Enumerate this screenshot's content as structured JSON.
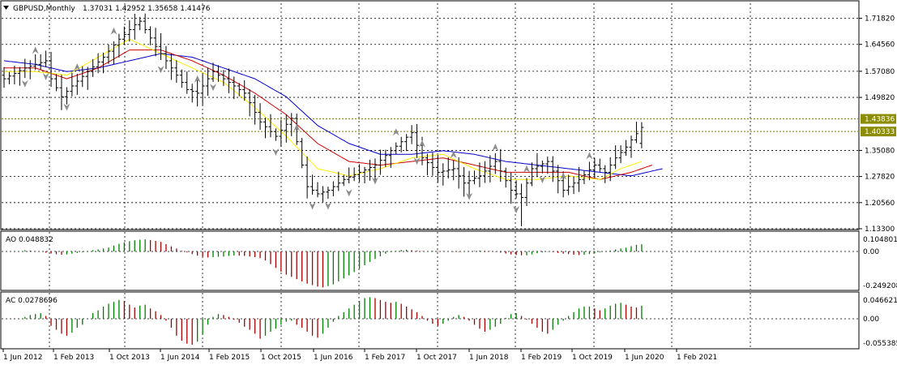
{
  "window": {
    "symbol_title": "GBPUSD,Monthly",
    "ohlc": "1.37031 1.42952 1.35658 1.41476",
    "dropdown_icon": "triangle-down-icon"
  },
  "colors": {
    "background": "#ffffff",
    "grid": "#000000",
    "bars": "#000000",
    "jaw": "#0000cc",
    "teeth": "#cc0000",
    "lips": "#ffee00",
    "osc_up": "#008000",
    "osc_down": "#aa0000",
    "price_tag_bg": "#8c8c00",
    "price_tag_text": "#ffffff",
    "fractal": "#8c8c8c",
    "level_line": "#7a7a00"
  },
  "sub_windows": {
    "ao": {
      "label": "AO 0.048832",
      "scale": [
        "0.104801",
        "0.00",
        "-0.249208"
      ]
    },
    "ac": {
      "label": "AC 0.0278696",
      "scale": [
        "0.0466218",
        "0.00",
        "-0.055385"
      ]
    }
  },
  "price_tags": {
    "upper": "1.43836",
    "lower": "1.40333"
  },
  "chart_data": {
    "type": "ohlc",
    "title": "GBPUSD,Monthly",
    "timeframe": "Monthly",
    "last_bar": {
      "open": 1.37031,
      "high": 1.42952,
      "low": 1.35658,
      "close": 1.41476
    },
    "ylim": [
      1.133,
      1.76
    ],
    "y_ticks": [
      "1.71820",
      "1.64560",
      "1.57080",
      "1.49820",
      "1.43836",
      "1.40333",
      "1.35080",
      "1.27820",
      "1.20560",
      "1.13300"
    ],
    "x_ticks": [
      "1 Jun 2012",
      "1 Feb 2013",
      "1 Oct 2013",
      "1 Jun 2014",
      "1 Feb 2015",
      "1 Oct 2015",
      "1 Jun 2016",
      "1 Feb 2017",
      "1 Oct 2017",
      "1 Jun 2018",
      "1 Feb 2019",
      "1 Oct 2019",
      "1 Jun 2020",
      "1 Feb 2021"
    ],
    "close_anchors": [
      [
        0,
        1.55
      ],
      [
        4,
        1.58
      ],
      [
        8,
        1.6
      ],
      [
        9,
        1.55
      ],
      [
        11,
        1.5
      ],
      [
        13,
        1.53
      ],
      [
        16,
        1.57
      ],
      [
        19,
        1.61
      ],
      [
        22,
        1.66
      ],
      [
        25,
        1.7
      ],
      [
        26,
        1.71
      ],
      [
        29,
        1.64
      ],
      [
        32,
        1.58
      ],
      [
        35,
        1.52
      ],
      [
        37,
        1.51
      ],
      [
        40,
        1.57
      ],
      [
        43,
        1.54
      ],
      [
        46,
        1.51
      ],
      [
        49,
        1.43
      ],
      [
        52,
        1.39
      ],
      [
        55,
        1.44
      ],
      [
        57,
        1.31
      ],
      [
        58,
        1.25
      ],
      [
        60,
        1.23
      ],
      [
        62,
        1.24
      ],
      [
        65,
        1.27
      ],
      [
        68,
        1.29
      ],
      [
        71,
        1.31
      ],
      [
        74,
        1.35
      ],
      [
        78,
        1.4
      ],
      [
        80,
        1.33
      ],
      [
        83,
        1.29
      ],
      [
        86,
        1.3
      ],
      [
        88,
        1.26
      ],
      [
        91,
        1.28
      ],
      [
        94,
        1.32
      ],
      [
        97,
        1.24
      ],
      [
        99,
        1.22
      ],
      [
        101,
        1.3
      ],
      [
        104,
        1.32
      ],
      [
        107,
        1.24
      ],
      [
        110,
        1.27
      ],
      [
        113,
        1.31
      ],
      [
        115,
        1.29
      ],
      [
        117,
        1.33
      ],
      [
        119,
        1.36
      ],
      [
        120,
        1.38
      ],
      [
        122,
        1.41476
      ]
    ],
    "alligator": {
      "jaw": [
        [
          0,
          1.6
        ],
        [
          6,
          1.59
        ],
        [
          12,
          1.57
        ],
        [
          18,
          1.58
        ],
        [
          24,
          1.6
        ],
        [
          30,
          1.62
        ],
        [
          36,
          1.61
        ],
        [
          42,
          1.58
        ],
        [
          48,
          1.55
        ],
        [
          54,
          1.5
        ],
        [
          60,
          1.42
        ],
        [
          66,
          1.37
        ],
        [
          72,
          1.34
        ],
        [
          78,
          1.34
        ],
        [
          84,
          1.35
        ],
        [
          90,
          1.34
        ],
        [
          96,
          1.32
        ],
        [
          102,
          1.31
        ],
        [
          108,
          1.3
        ],
        [
          114,
          1.29
        ],
        [
          120,
          1.28
        ],
        [
          126,
          1.3
        ]
      ],
      "teeth": [
        [
          0,
          1.58
        ],
        [
          6,
          1.58
        ],
        [
          12,
          1.55
        ],
        [
          18,
          1.58
        ],
        [
          24,
          1.63
        ],
        [
          30,
          1.63
        ],
        [
          36,
          1.6
        ],
        [
          42,
          1.56
        ],
        [
          48,
          1.51
        ],
        [
          54,
          1.45
        ],
        [
          60,
          1.37
        ],
        [
          66,
          1.32
        ],
        [
          72,
          1.31
        ],
        [
          78,
          1.32
        ],
        [
          84,
          1.33
        ],
        [
          90,
          1.31
        ],
        [
          96,
          1.29
        ],
        [
          102,
          1.29
        ],
        [
          108,
          1.29
        ],
        [
          114,
          1.27
        ],
        [
          120,
          1.29
        ],
        [
          124,
          1.31
        ]
      ],
      "lips": [
        [
          0,
          1.57
        ],
        [
          6,
          1.57
        ],
        [
          12,
          1.56
        ],
        [
          18,
          1.61
        ],
        [
          24,
          1.66
        ],
        [
          30,
          1.62
        ],
        [
          36,
          1.58
        ],
        [
          42,
          1.54
        ],
        [
          48,
          1.47
        ],
        [
          54,
          1.39
        ],
        [
          60,
          1.3
        ],
        [
          66,
          1.28
        ],
        [
          72,
          1.3
        ],
        [
          78,
          1.33
        ],
        [
          84,
          1.34
        ],
        [
          90,
          1.3
        ],
        [
          96,
          1.27
        ],
        [
          102,
          1.27
        ],
        [
          108,
          1.28
        ],
        [
          114,
          1.27
        ],
        [
          118,
          1.3
        ],
        [
          122,
          1.32
        ]
      ]
    },
    "ao_values": [
      0.008,
      0.006,
      0.003,
      0.0,
      -0.008,
      -0.014,
      -0.019,
      -0.022,
      -0.02,
      -0.015,
      -0.01,
      -0.005,
      0.003,
      0.008,
      0.014,
      0.02,
      0.026,
      0.04,
      0.052,
      0.062,
      0.07,
      0.076,
      0.08,
      0.082,
      0.078,
      0.072,
      0.065,
      0.05,
      0.035,
      0.02,
      0.004,
      -0.006,
      -0.018,
      -0.028,
      -0.036,
      -0.04,
      -0.038,
      -0.036,
      -0.034,
      -0.03,
      -0.027,
      -0.028,
      -0.03,
      -0.034,
      -0.038,
      -0.045,
      -0.06,
      -0.085,
      -0.11,
      -0.135,
      -0.155,
      -0.17,
      -0.185,
      -0.2,
      -0.215,
      -0.225,
      -0.235,
      -0.24,
      -0.232,
      -0.22,
      -0.2,
      -0.18,
      -0.16,
      -0.138,
      -0.115,
      -0.092,
      -0.07,
      -0.05,
      -0.032,
      -0.015,
      -0.004,
      0.004,
      0.01,
      0.012,
      0.008,
      0.004,
      0.002,
      0.003,
      0.004,
      0.003,
      0.002,
      0.0,
      -0.002,
      -0.003,
      -0.002,
      0.001,
      0.004,
      0.006,
      0.004,
      0.002,
      -0.002,
      -0.008,
      -0.014,
      -0.02,
      -0.024,
      -0.026,
      -0.026,
      -0.02,
      -0.012,
      -0.006,
      -0.002,
      -0.004,
      -0.01,
      -0.015,
      -0.018,
      -0.022,
      -0.024,
      -0.022,
      -0.018,
      -0.012,
      -0.006,
      0.0,
      0.006,
      0.014,
      0.02,
      0.026,
      0.036,
      0.045,
      0.048832
    ],
    "ac_values": [
      0.004,
      0.008,
      0.01,
      0.012,
      0.006,
      -0.014,
      -0.022,
      -0.03,
      -0.034,
      -0.028,
      -0.018,
      -0.012,
      0.0,
      0.012,
      0.018,
      0.026,
      0.032,
      0.036,
      0.04,
      0.038,
      0.03,
      0.024,
      0.028,
      0.03,
      0.022,
      0.016,
      0.008,
      -0.004,
      -0.018,
      -0.034,
      -0.044,
      -0.05,
      -0.052,
      -0.046,
      -0.032,
      -0.012,
      0.004,
      0.01,
      0.008,
      0.004,
      -0.002,
      -0.008,
      -0.016,
      -0.022,
      -0.03,
      -0.04,
      -0.034,
      -0.026,
      -0.02,
      -0.012,
      -0.006,
      -0.004,
      -0.012,
      -0.018,
      -0.026,
      -0.034,
      -0.038,
      -0.03,
      -0.018,
      -0.006,
      0.006,
      0.014,
      0.022,
      0.03,
      0.038,
      0.044,
      0.046,
      0.044,
      0.04,
      0.036,
      0.034,
      0.036,
      0.032,
      0.026,
      0.02,
      0.014,
      0.006,
      -0.004,
      -0.01,
      -0.014,
      -0.01,
      -0.004,
      0.004,
      0.008,
      0.004,
      -0.004,
      -0.012,
      -0.02,
      -0.026,
      -0.022,
      -0.016,
      -0.01,
      0.002,
      0.01,
      0.012,
      0.006,
      -0.002,
      -0.01,
      -0.018,
      -0.026,
      -0.03,
      -0.022,
      -0.012,
      -0.004,
      0.006,
      0.014,
      0.022,
      0.026,
      0.026,
      0.022,
      0.018,
      0.022,
      0.028,
      0.032,
      0.034,
      0.03,
      0.026,
      0.024,
      0.0278696
    ],
    "fractals_up": [
      6,
      14,
      21,
      37,
      56,
      75,
      80,
      86,
      94,
      100,
      107,
      112
    ],
    "fractals_down": [
      4,
      8,
      12,
      30,
      40,
      52,
      59,
      62,
      66,
      71,
      79,
      89,
      98,
      103
    ]
  }
}
